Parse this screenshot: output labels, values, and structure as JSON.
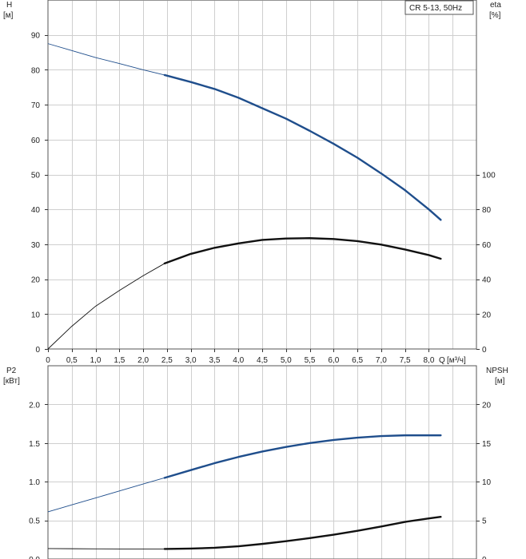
{
  "chart_data": [
    {
      "type": "line",
      "legend": "CR 5-13, 50Hz",
      "left_axis": {
        "label": "H",
        "unit": "[м]",
        "ylim": [
          0,
          100
        ],
        "ticks": [
          0,
          10,
          20,
          30,
          40,
          50,
          60,
          70,
          80,
          90
        ]
      },
      "right_axis": {
        "label": "eta",
        "unit": "[%]",
        "ylim": [
          0,
          200
        ],
        "ticks": [
          0,
          20,
          40,
          60,
          80,
          100
        ]
      },
      "x_axis": {
        "label": "Q",
        "unit": "[м³/ч]",
        "xlim": [
          0,
          9
        ],
        "ticks": [
          0,
          0.5,
          1.0,
          1.5,
          2.0,
          2.5,
          3.0,
          3.5,
          4.0,
          4.5,
          5.0,
          5.5,
          6.0,
          6.5,
          7.0,
          7.5,
          8.0
        ],
        "tick_labels": [
          "0",
          "0,5",
          "1,0",
          "1,5",
          "2,0",
          "2,5",
          "3,0",
          "3,5",
          "4,0",
          "4,5",
          "5,0",
          "5,5",
          "6,0",
          "6,5",
          "7,0",
          "7,5",
          "8,0"
        ]
      },
      "series": [
        {
          "axis": "left",
          "color": "#1f4e8c",
          "x": [
            0,
            0.5,
            1.0,
            1.5,
            2.0,
            2.45,
            3.0,
            3.5,
            4.0,
            4.5,
            5.0,
            5.5,
            6.0,
            6.5,
            7.0,
            7.5,
            8.0,
            8.25
          ],
          "y": [
            87.5,
            85.5,
            83.5,
            81.8,
            80.0,
            78.5,
            76.5,
            74.5,
            72.0,
            69.0,
            66.0,
            62.5,
            58.8,
            54.8,
            50.3,
            45.5,
            40.0,
            37.0
          ],
          "solid_from": 2.45
        },
        {
          "axis": "right",
          "color": "#111111",
          "x": [
            0,
            0.5,
            1.0,
            1.5,
            2.0,
            2.45,
            3.0,
            3.5,
            4.0,
            4.5,
            5.0,
            5.5,
            6.0,
            6.5,
            7.0,
            7.5,
            8.0,
            8.25
          ],
          "y": [
            0,
            13.0,
            24.5,
            33.5,
            42.0,
            49.0,
            54.5,
            58.0,
            60.5,
            62.5,
            63.3,
            63.5,
            63.0,
            61.8,
            59.8,
            57.0,
            53.8,
            51.7
          ],
          "solid_from": 2.45
        }
      ]
    },
    {
      "type": "line",
      "left_axis": {
        "label": "P2",
        "unit": "[кВт]",
        "ylim": [
          0,
          2.5
        ],
        "ticks": [
          0,
          0.5,
          1.0,
          1.5,
          2.0
        ],
        "tick_labels": [
          "0.0",
          "0.5",
          "1.0",
          "1.5",
          "2.0"
        ]
      },
      "right_axis": {
        "label": "NPSH",
        "unit": "[м]",
        "ylim": [
          0,
          25
        ],
        "ticks": [
          0,
          5,
          10,
          15,
          20
        ]
      },
      "x_axis": {
        "xlim": [
          0,
          9
        ],
        "ticks": [
          0,
          0.5,
          1.0,
          1.5,
          2.0,
          2.5,
          3.0,
          3.5,
          4.0,
          4.5,
          5.0,
          5.5,
          6.0,
          6.5,
          7.0,
          7.5,
          8.0
        ]
      },
      "series": [
        {
          "axis": "left",
          "color": "#1f4e8c",
          "x": [
            0,
            0.5,
            1.0,
            1.5,
            2.0,
            2.45,
            3.0,
            3.5,
            4.0,
            4.5,
            5.0,
            5.5,
            6.0,
            6.5,
            7.0,
            7.5,
            8.0,
            8.25
          ],
          "y": [
            0.61,
            0.7,
            0.79,
            0.88,
            0.97,
            1.05,
            1.15,
            1.24,
            1.32,
            1.39,
            1.45,
            1.5,
            1.54,
            1.57,
            1.59,
            1.6,
            1.6,
            1.6
          ],
          "solid_from": 2.45
        },
        {
          "axis": "right",
          "color": "#111111",
          "x": [
            0,
            0.5,
            1.0,
            1.5,
            2.0,
            2.45,
            3.0,
            3.5,
            4.0,
            4.5,
            5.0,
            5.5,
            6.0,
            6.5,
            7.0,
            7.5,
            8.0,
            8.25
          ],
          "y": [
            1.35,
            1.33,
            1.31,
            1.3,
            1.3,
            1.3,
            1.35,
            1.45,
            1.65,
            1.95,
            2.3,
            2.7,
            3.15,
            3.65,
            4.2,
            4.8,
            5.25,
            5.45
          ],
          "solid_from": 2.45
        }
      ]
    }
  ]
}
